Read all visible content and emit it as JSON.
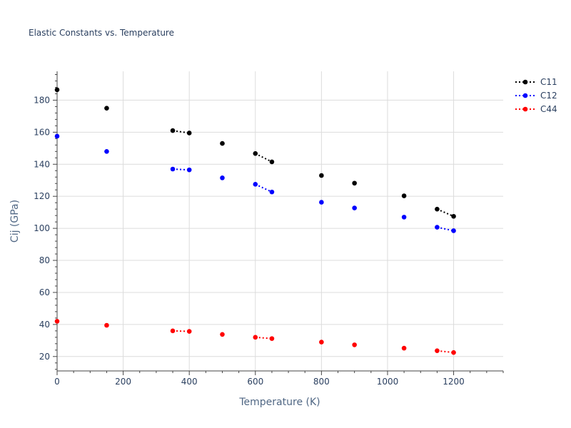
{
  "chart_data": {
    "type": "scatter",
    "title": "Elastic Constants vs. Temperature",
    "xlabel": "Temperature (K)",
    "ylabel": "Cij (GPa)",
    "xlim": [
      0,
      1350
    ],
    "ylim": [
      11,
      198
    ],
    "x_ticks": [
      0,
      200,
      400,
      600,
      800,
      1000,
      1200
    ],
    "y_ticks": [
      20,
      40,
      60,
      80,
      100,
      120,
      140,
      160,
      180
    ],
    "grid": true,
    "legend_position": "top-right",
    "series": [
      {
        "name": "C11",
        "color": "#000000",
        "points": [
          {
            "x": 0,
            "y": 186.5
          },
          {
            "x": 150,
            "y": 175
          },
          {
            "x": 350,
            "y": 161
          },
          {
            "x": 400,
            "y": 159.5
          },
          {
            "x": 500,
            "y": 153
          },
          {
            "x": 600,
            "y": 146.7
          },
          {
            "x": 650,
            "y": 141.5
          },
          {
            "x": 800,
            "y": 133
          },
          {
            "x": 900,
            "y": 128.2
          },
          {
            "x": 1050,
            "y": 120.3
          },
          {
            "x": 1150,
            "y": 112
          },
          {
            "x": 1200,
            "y": 107.5
          }
        ],
        "dotted_segments": [
          [
            350,
            400
          ],
          [
            600,
            650
          ],
          [
            1150,
            1200
          ]
        ]
      },
      {
        "name": "C12",
        "color": "#0000ff",
        "points": [
          {
            "x": 0,
            "y": 157.5
          },
          {
            "x": 150,
            "y": 148
          },
          {
            "x": 350,
            "y": 137
          },
          {
            "x": 400,
            "y": 136.5
          },
          {
            "x": 500,
            "y": 131.5
          },
          {
            "x": 600,
            "y": 127.5
          },
          {
            "x": 650,
            "y": 122.7
          },
          {
            "x": 800,
            "y": 116.3
          },
          {
            "x": 900,
            "y": 112.7
          },
          {
            "x": 1050,
            "y": 107
          },
          {
            "x": 1150,
            "y": 100.7
          },
          {
            "x": 1200,
            "y": 98.5
          }
        ],
        "dotted_segments": [
          [
            350,
            400
          ],
          [
            600,
            650
          ],
          [
            1150,
            1200
          ]
        ]
      },
      {
        "name": "C44",
        "color": "#ff0000",
        "points": [
          {
            "x": 0,
            "y": 42
          },
          {
            "x": 150,
            "y": 39.5
          },
          {
            "x": 350,
            "y": 36
          },
          {
            "x": 400,
            "y": 35.7
          },
          {
            "x": 500,
            "y": 33.8
          },
          {
            "x": 600,
            "y": 32
          },
          {
            "x": 650,
            "y": 31.2
          },
          {
            "x": 800,
            "y": 29
          },
          {
            "x": 900,
            "y": 27.3
          },
          {
            "x": 1050,
            "y": 25.2
          },
          {
            "x": 1150,
            "y": 23.6
          },
          {
            "x": 1200,
            "y": 22.5
          }
        ],
        "dotted_segments": [
          [
            350,
            400
          ],
          [
            600,
            650
          ],
          [
            1150,
            1200
          ]
        ]
      }
    ]
  }
}
